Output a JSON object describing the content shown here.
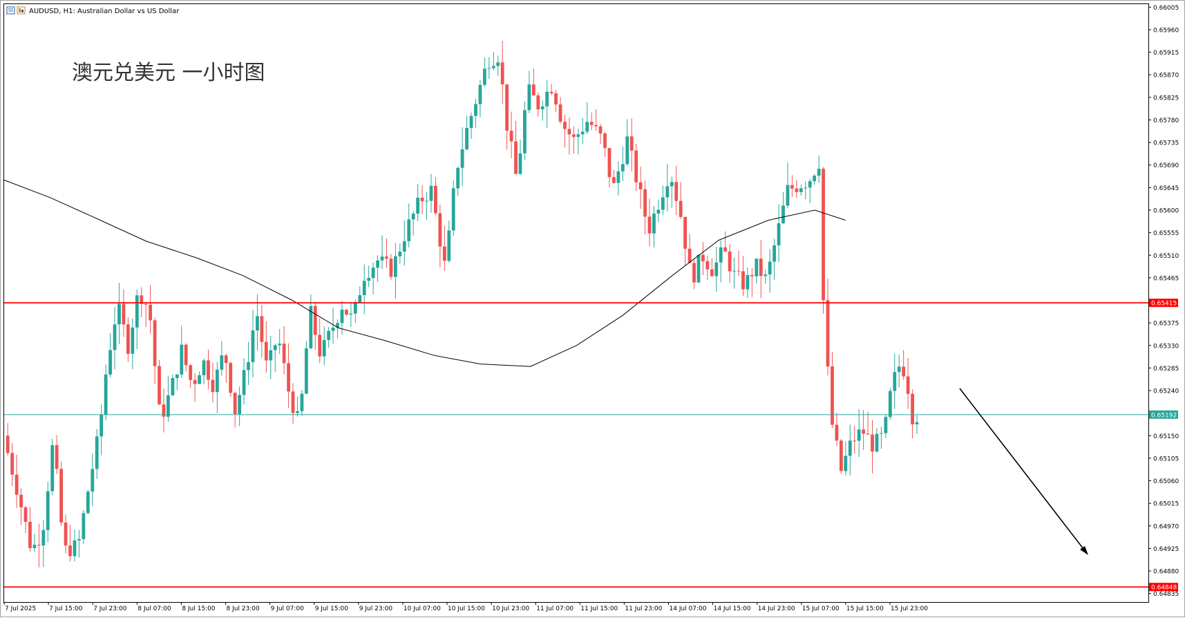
{
  "header": {
    "symbol_line": "AUDUSD, H1:  Australian Dollar vs US Dollar",
    "icon": "chart-window-icon"
  },
  "annotation": {
    "title": "澳元兑美元 一小时图"
  },
  "colors": {
    "bull": "#26a69a",
    "bear": "#ef5350",
    "level_line": "#ff0000",
    "current_line": "#26a69a",
    "ma_line": "#000000",
    "arrow": "#000000",
    "frame": "#000000",
    "label_text": "#ffffff"
  },
  "chart_data": {
    "type": "candlestick",
    "symbol": "AUDUSD",
    "timeframe": "H1",
    "ylim": [
      0.64818,
      0.66011
    ],
    "y_ticks": [
      "0.66005",
      "0.65960",
      "0.65915",
      "0.65870",
      "0.65825",
      "0.65780",
      "0.65735",
      "0.65690",
      "0.65645",
      "0.65600",
      "0.65555",
      "0.65510",
      "0.65465",
      "0.65375",
      "0.65330",
      "0.65285",
      "0.65240",
      "0.65150",
      "0.65105",
      "0.65060",
      "0.65015",
      "0.64970",
      "0.64925",
      "0.64880",
      "0.64835"
    ],
    "x_ticks": [
      "7 Jul 2025",
      "7 Jul 15:00",
      "7 Jul 23:00",
      "8 Jul 07:00",
      "8 Jul 15:00",
      "8 Jul 23:00",
      "9 Jul 07:00",
      "9 Jul 15:00",
      "9 Jul 23:00",
      "10 Jul 07:00",
      "10 Jul 15:00",
      "10 Jul 23:00",
      "11 Jul 07:00",
      "11 Jul 15:00",
      "11 Jul 23:00",
      "14 Jul 07:00",
      "14 Jul 15:00",
      "14 Jul 23:00",
      "15 Jul 07:00",
      "15 Jul 15:00",
      "15 Jul 23:00"
    ],
    "candle_count": 205,
    "levels": [
      {
        "name": "resistance",
        "value": 0.65415,
        "label": "0.65415",
        "color": "#ff0000"
      },
      {
        "name": "support",
        "value": 0.64848,
        "label": "0.64848",
        "color": "#ff0000"
      },
      {
        "name": "current-price",
        "value": 0.65192,
        "label": "0.65192",
        "color": "#26a69a"
      }
    ],
    "ma_points": [
      [
        0,
        0.6566
      ],
      [
        12,
        0.65625
      ],
      [
        25,
        0.6558
      ],
      [
        37,
        0.65538
      ],
      [
        50,
        0.65505
      ],
      [
        62,
        0.6547
      ],
      [
        75,
        0.6542
      ],
      [
        87,
        0.65365
      ],
      [
        99,
        0.6534
      ],
      [
        112,
        0.6531
      ],
      [
        124,
        0.65293
      ],
      [
        137,
        0.65288
      ],
      [
        149,
        0.6533
      ],
      [
        161,
        0.6539
      ],
      [
        174,
        0.6547
      ],
      [
        186,
        0.6554
      ],
      [
        199,
        0.6558
      ],
      [
        211,
        0.656
      ],
      [
        219,
        0.6558
      ]
    ],
    "price_path": [
      [
        0,
        0.6515
      ],
      [
        4,
        0.6504
      ],
      [
        8,
        0.6492
      ],
      [
        11,
        0.6496
      ],
      [
        14,
        0.6514
      ],
      [
        17,
        0.6492
      ],
      [
        21,
        0.6493
      ],
      [
        24,
        0.6505
      ],
      [
        27,
        0.6516
      ],
      [
        29,
        0.6529
      ],
      [
        32,
        0.6541
      ],
      [
        35,
        0.6533
      ],
      [
        38,
        0.6544
      ],
      [
        41,
        0.654
      ],
      [
        44,
        0.6518
      ],
      [
        47,
        0.6524
      ],
      [
        50,
        0.6532
      ],
      [
        53,
        0.6525
      ],
      [
        56,
        0.653
      ],
      [
        59,
        0.6525
      ],
      [
        62,
        0.6532
      ],
      [
        65,
        0.652
      ],
      [
        68,
        0.6528
      ],
      [
        71,
        0.654
      ],
      [
        74,
        0.6528
      ],
      [
        77,
        0.6535
      ],
      [
        80,
        0.6524
      ],
      [
        83,
        0.6517
      ],
      [
        86,
        0.654
      ],
      [
        89,
        0.6531
      ],
      [
        92,
        0.6536
      ],
      [
        95,
        0.6541
      ],
      [
        98,
        0.6538
      ],
      [
        101,
        0.6547
      ],
      [
        105,
        0.655
      ],
      [
        109,
        0.6548
      ],
      [
        113,
        0.6556
      ],
      [
        117,
        0.6562
      ],
      [
        120,
        0.6564
      ],
      [
        124,
        0.6548
      ],
      [
        127,
        0.6568
      ],
      [
        130,
        0.6576
      ],
      [
        133,
        0.6583
      ],
      [
        136,
        0.659
      ],
      [
        139,
        0.6591
      ],
      [
        141,
        0.6578
      ],
      [
        144,
        0.6566
      ],
      [
        147,
        0.6584
      ],
      [
        150,
        0.6581
      ],
      [
        154,
        0.6585
      ],
      [
        157,
        0.6577
      ],
      [
        160,
        0.6574
      ],
      [
        164,
        0.6578
      ],
      [
        168,
        0.6574
      ],
      [
        171,
        0.6564
      ],
      [
        175,
        0.6574
      ],
      [
        178,
        0.6565
      ],
      [
        181,
        0.6556
      ],
      [
        184,
        0.6562
      ],
      [
        187,
        0.6568
      ],
      [
        190,
        0.6559
      ],
      [
        193,
        0.6546
      ],
      [
        196,
        0.6551
      ],
      [
        199,
        0.6548
      ],
      [
        202,
        0.6552
      ],
      [
        205,
        0.6547
      ],
      [
        208,
        0.6545
      ],
      [
        211,
        0.6549
      ],
      [
        214,
        0.6546
      ],
      [
        217,
        0.6555
      ],
      [
        220,
        0.6564
      ],
      [
        223,
        0.6565
      ],
      [
        226,
        0.6566
      ],
      [
        229,
        0.657
      ],
      [
        230,
        0.6542
      ],
      [
        232,
        0.6519
      ],
      [
        235,
        0.6508
      ],
      [
        238,
        0.6514
      ],
      [
        241,
        0.6516
      ],
      [
        244,
        0.6513
      ],
      [
        247,
        0.6515
      ],
      [
        249,
        0.6524
      ],
      [
        251,
        0.6529
      ],
      [
        253,
        0.6528
      ],
      [
        255,
        0.6519
      ]
    ]
  }
}
